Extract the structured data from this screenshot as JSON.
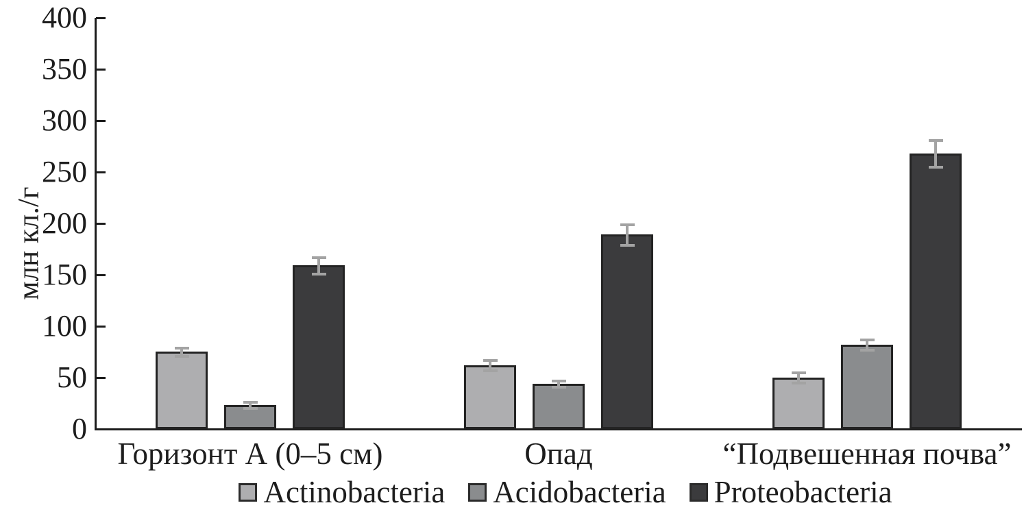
{
  "chart_data": {
    "type": "bar",
    "title": "",
    "xlabel": "",
    "ylabel": "млн кл./г",
    "ylim": [
      0,
      400
    ],
    "yticks": [
      0,
      50,
      100,
      150,
      200,
      250,
      300,
      350,
      400
    ],
    "grid": false,
    "legend_position": "bottom",
    "categories": [
      "Горизонт А (0–5 см)",
      "Опад",
      "“Подвешенная почва”"
    ],
    "series": [
      {
        "name": "Actinobacteria",
        "color": "#aeaeb0",
        "values": [
          75,
          62,
          50
        ],
        "errors": [
          4,
          5,
          5
        ]
      },
      {
        "name": "Acidobacteria",
        "color": "#8a8c8e",
        "values": [
          23,
          44,
          82
        ],
        "errors": [
          3,
          3,
          5
        ]
      },
      {
        "name": "Proteobacteria",
        "color": "#3b3b3d",
        "values": [
          159,
          189,
          268
        ],
        "errors": [
          8,
          10,
          13
        ]
      }
    ],
    "colors": {
      "axis": "#1d1d1d",
      "bar_border": "#232323",
      "error_bar": "#a3a3a3",
      "text": "#1d1d1d",
      "background": "#ffffff"
    }
  }
}
